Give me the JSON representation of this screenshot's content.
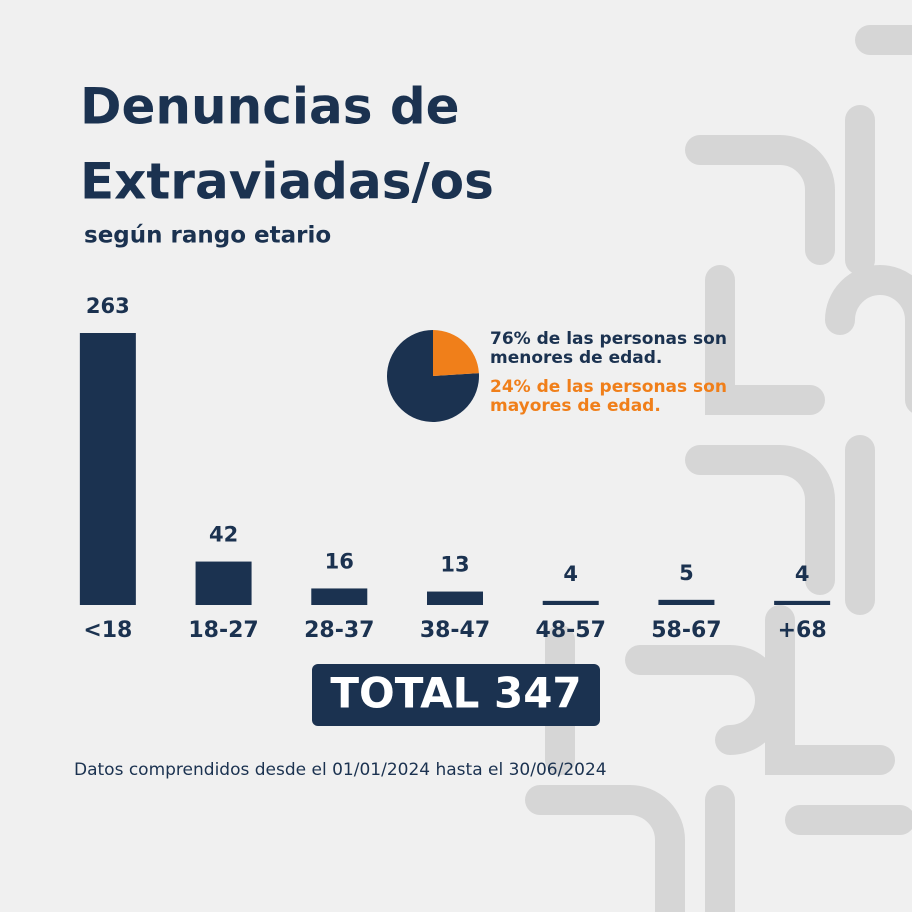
{
  "title_lines": [
    "Denuncias de",
    "Extraviadas/os"
  ],
  "subtitle": "según rango etario",
  "total": "TOTAL 347",
  "footnote": "Datos comprendidos desde el 01/01/2024 hasta el 30/06/2024",
  "chart_data": [
    {
      "type": "bar",
      "color": "#1b3250",
      "categories": [
        "<18",
        "18-27",
        "28-37",
        "38-47",
        "48-57",
        "58-67",
        "+68"
      ],
      "values": [
        263,
        42,
        16,
        13,
        4,
        5,
        4
      ]
    },
    {
      "type": "pie",
      "categories": [
        "76% de las personas son menores de edad.",
        "24% de las personas son mayores de edad."
      ],
      "values": [
        76,
        24
      ],
      "colors": [
        "#1b3250",
        "#f07f1a"
      ]
    }
  ]
}
